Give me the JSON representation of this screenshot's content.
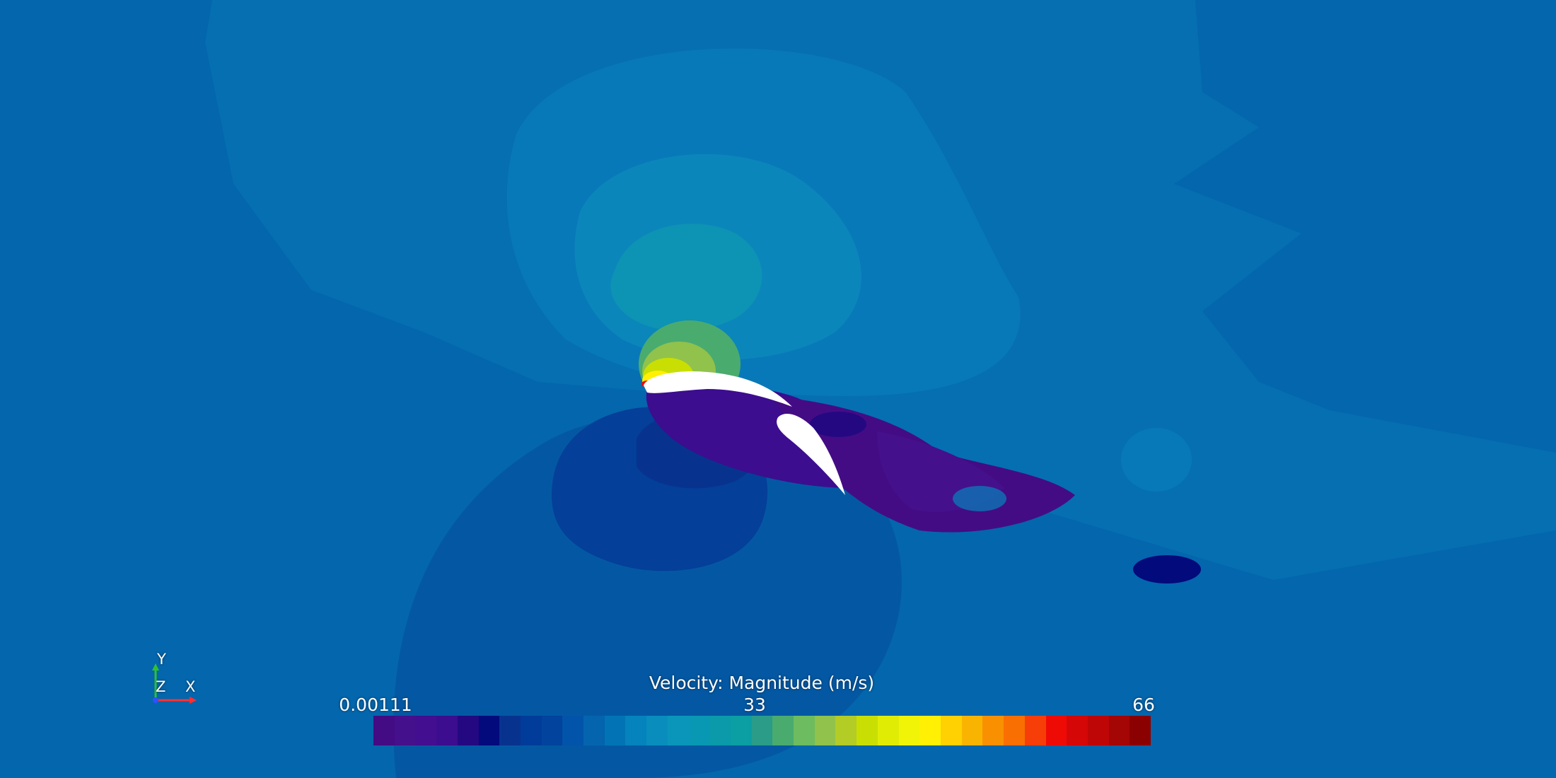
{
  "colorbar": {
    "title": "Velocity: Magnitude (m/s)",
    "min_label": "0.00111",
    "mid_label": "33",
    "max_label": "66",
    "colors": [
      "#440c84",
      "#45108c",
      "#430e90",
      "#3c0d8f",
      "#230882",
      "#030a7c",
      "#07338e",
      "#013c9a",
      "#01439d",
      "#0254aa",
      "#0564ae",
      "#0274b5",
      "#0583bc",
      "#088dbd",
      "#0a96bb",
      "#0898b3",
      "#0a9aa9",
      "#0b9ea2",
      "#2a9c88",
      "#4aab6f",
      "#6dbc60",
      "#91c24b",
      "#b3cc26",
      "#c9df03",
      "#e0ec04",
      "#f1f407",
      "#fff004",
      "#ffd002",
      "#f9b301",
      "#f99001",
      "#f96f01",
      "#f73e09",
      "#ee0b05",
      "#d50707",
      "#bf0606",
      "#a40505",
      "#8b0000"
    ]
  },
  "axes": {
    "x": "X",
    "y": "Y",
    "z": "Z"
  },
  "colors": {
    "background": "#0466ac",
    "deep_blue": "#03549f",
    "low_velocity": "#440c84",
    "high_velocity": "#f1f407",
    "airfoil": "#ffffff"
  }
}
